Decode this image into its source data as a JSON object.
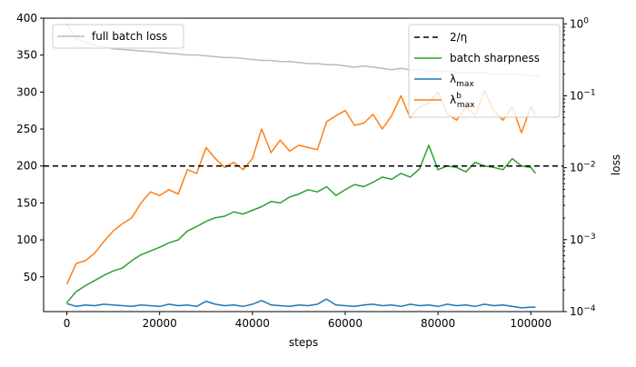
{
  "chart_data": {
    "type": "line",
    "xlabel": "steps",
    "ylabel_right": "loss",
    "xlim": [
      -5000,
      107000
    ],
    "x_ticks": [
      0,
      20000,
      40000,
      60000,
      80000,
      100000
    ],
    "x_tick_labels": [
      "0",
      "20000",
      "40000",
      "60000",
      "80000",
      "100000"
    ],
    "ylim_left": [
      3,
      400
    ],
    "y_ticks_left": [
      50,
      100,
      150,
      200,
      250,
      300,
      350,
      400
    ],
    "y_tick_labels_left": [
      "50",
      "100",
      "150",
      "200",
      "250",
      "300",
      "350",
      "400"
    ],
    "right_axis_scale": "log",
    "ylim_right": [
      0.0001,
      1.2
    ],
    "y_ticks_right": [
      0.0001,
      0.001,
      0.01,
      0.1,
      1
    ],
    "y_tick_labels_right": [
      {
        "base": "10",
        "exp": "−4"
      },
      {
        "base": "10",
        "exp": "−3"
      },
      {
        "base": "10",
        "exp": "−2"
      },
      {
        "base": "10",
        "exp": "−1"
      },
      {
        "base": "10",
        "exp": "0"
      }
    ],
    "hline": {
      "y": 200,
      "color": "#000000",
      "style": "dashed",
      "label": "2/η"
    },
    "series": [
      {
        "name": "batch sharpness",
        "color": "#2ca02c",
        "axis": "left",
        "x": [
          0,
          2000,
          4000,
          6000,
          8000,
          10000,
          12000,
          14000,
          16000,
          18000,
          20000,
          22000,
          24000,
          26000,
          28000,
          30000,
          32000,
          34000,
          36000,
          38000,
          40000,
          42000,
          44000,
          46000,
          48000,
          50000,
          52000,
          54000,
          56000,
          58000,
          60000,
          62000,
          64000,
          66000,
          68000,
          70000,
          72000,
          74000,
          76000,
          78000,
          80000,
          82000,
          84000,
          86000,
          88000,
          90000,
          92000,
          94000,
          96000,
          98000,
          100000,
          101000
        ],
        "y": [
          15,
          30,
          38,
          45,
          52,
          58,
          62,
          72,
          80,
          85,
          90,
          96,
          100,
          112,
          118,
          125,
          130,
          132,
          138,
          135,
          140,
          145,
          152,
          150,
          158,
          162,
          168,
          165,
          172,
          160,
          168,
          175,
          172,
          178,
          185,
          182,
          190,
          185,
          196,
          228,
          195,
          200,
          198,
          192,
          205,
          200,
          198,
          195,
          210,
          200,
          198,
          190
        ]
      },
      {
        "name": "λ_max",
        "color": "#1f77b4",
        "axis": "left",
        "x": [
          0,
          2000,
          4000,
          6000,
          8000,
          10000,
          12000,
          14000,
          16000,
          18000,
          20000,
          22000,
          24000,
          26000,
          28000,
          30000,
          32000,
          34000,
          36000,
          38000,
          40000,
          42000,
          44000,
          46000,
          48000,
          50000,
          52000,
          54000,
          56000,
          58000,
          60000,
          62000,
          64000,
          66000,
          68000,
          70000,
          72000,
          74000,
          76000,
          78000,
          80000,
          82000,
          84000,
          86000,
          88000,
          90000,
          92000,
          94000,
          96000,
          98000,
          100000,
          101000
        ],
        "y": [
          14,
          10,
          12,
          11,
          13,
          12,
          11,
          10,
          12,
          11,
          10,
          13,
          11,
          12,
          10,
          17,
          13,
          11,
          12,
          10,
          13,
          18,
          12,
          11,
          10,
          12,
          11,
          13,
          20,
          12,
          11,
          10,
          12,
          13,
          11,
          12,
          10,
          13,
          11,
          12,
          10,
          13,
          11,
          12,
          10,
          13,
          11,
          12,
          10,
          8,
          9,
          9
        ]
      },
      {
        "name": "λ^b_max",
        "color": "#ff7f0e",
        "axis": "left",
        "x": [
          0,
          2000,
          4000,
          6000,
          8000,
          10000,
          12000,
          14000,
          16000,
          18000,
          20000,
          22000,
          24000,
          26000,
          28000,
          30000,
          32000,
          34000,
          36000,
          38000,
          40000,
          42000,
          44000,
          46000,
          48000,
          50000,
          52000,
          54000,
          56000,
          58000,
          60000,
          62000,
          64000,
          66000,
          68000,
          70000,
          72000,
          74000,
          76000,
          78000,
          80000,
          82000,
          84000,
          86000,
          88000,
          90000,
          92000,
          94000,
          96000,
          98000,
          100000,
          101000
        ],
        "y": [
          40,
          68,
          72,
          82,
          98,
          112,
          122,
          130,
          150,
          165,
          160,
          168,
          162,
          195,
          190,
          225,
          210,
          198,
          205,
          195,
          210,
          250,
          218,
          235,
          220,
          228,
          225,
          222,
          260,
          268,
          275,
          255,
          258,
          270,
          250,
          268,
          295,
          265,
          280,
          285,
          300,
          270,
          262,
          280,
          268,
          302,
          275,
          262,
          280,
          245,
          280,
          268
        ]
      },
      {
        "name": "full batch loss",
        "color": "#bbbbbb",
        "axis": "right",
        "x": [
          0,
          2000,
          4000,
          6000,
          8000,
          10000,
          12000,
          14000,
          16000,
          18000,
          20000,
          22000,
          24000,
          26000,
          28000,
          30000,
          32000,
          34000,
          36000,
          38000,
          40000,
          42000,
          44000,
          46000,
          48000,
          50000,
          52000,
          54000,
          56000,
          58000,
          60000,
          62000,
          64000,
          66000,
          68000,
          70000,
          72000,
          74000,
          76000,
          78000,
          80000,
          82000,
          84000,
          86000,
          88000,
          90000,
          92000,
          94000,
          96000,
          98000,
          100000,
          102000
        ],
        "y": [
          1.0,
          0.62,
          0.55,
          0.5,
          0.48,
          0.45,
          0.44,
          0.43,
          0.42,
          0.41,
          0.4,
          0.39,
          0.38,
          0.37,
          0.37,
          0.36,
          0.35,
          0.34,
          0.34,
          0.33,
          0.32,
          0.31,
          0.31,
          0.3,
          0.3,
          0.29,
          0.28,
          0.28,
          0.27,
          0.27,
          0.26,
          0.25,
          0.26,
          0.25,
          0.24,
          0.23,
          0.24,
          0.23,
          0.23,
          0.22,
          0.22,
          0.22,
          0.21,
          0.21,
          0.21,
          0.21,
          0.2,
          0.2,
          0.2,
          0.2,
          0.19,
          0.19
        ]
      }
    ],
    "legend_left": {
      "placement": "upper-left",
      "entries": [
        {
          "label": "full batch loss",
          "color": "#bbbbbb"
        }
      ]
    },
    "legend_right": {
      "placement": "upper-right",
      "entries": [
        {
          "label_base": "2/η",
          "label_sub": "",
          "label_sup": "",
          "color": "#000000",
          "style": "dashed"
        },
        {
          "label_base": "batch sharpness",
          "label_sub": "",
          "label_sup": "",
          "color": "#2ca02c",
          "style": "solid"
        },
        {
          "label_base": "λ",
          "label_sub": "max",
          "label_sup": "",
          "color": "#1f77b4",
          "style": "solid"
        },
        {
          "label_base": "λ",
          "label_sub": "max",
          "label_sup": "b",
          "color": "#ff7f0e",
          "style": "solid"
        }
      ]
    },
    "grid": false
  }
}
